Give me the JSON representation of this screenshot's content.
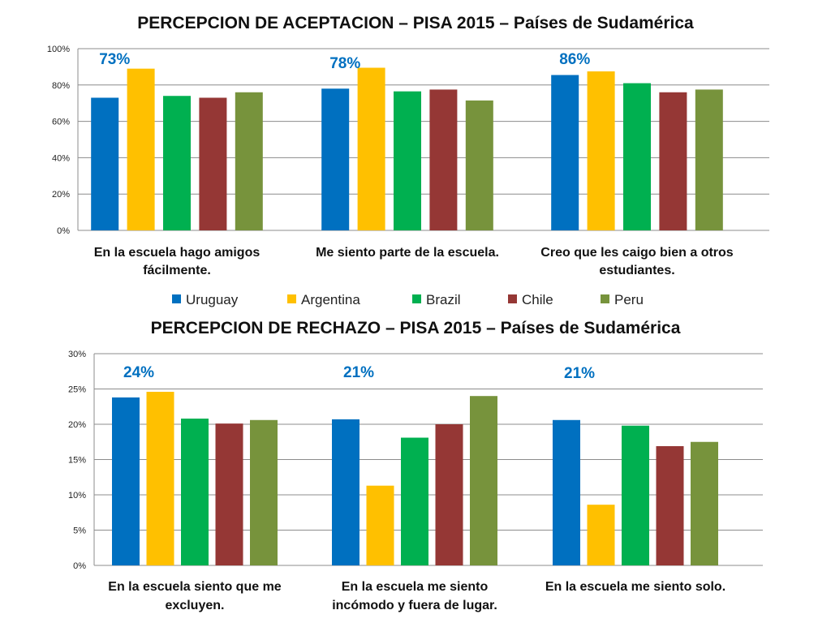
{
  "chart_data": [
    {
      "type": "bar",
      "title": "PERCEPCION DE ACEPTACION – PISA 2015 – Países de Sudamérica",
      "ylim": [
        0,
        100
      ],
      "yticks": [
        "0%",
        "20%",
        "40%",
        "60%",
        "80%",
        "100%"
      ],
      "ytick_values": [
        0,
        20,
        40,
        60,
        80,
        100
      ],
      "grid": true,
      "categories": [
        [
          "En la escuela hago amigos",
          "fácilmente."
        ],
        [
          "Me siento parte de la escuela."
        ],
        [
          "Creo que les caigo bien a otros",
          "estudiantes."
        ]
      ],
      "series": [
        {
          "name": "Uruguay",
          "values": [
            73,
            78,
            85.5
          ]
        },
        {
          "name": "Argentina",
          "values": [
            89,
            89.5,
            87.5
          ]
        },
        {
          "name": "Brazil",
          "values": [
            74,
            76.5,
            81
          ]
        },
        {
          "name": "Chile",
          "values": [
            73,
            77.5,
            76
          ]
        },
        {
          "name": "Peru",
          "values": [
            76,
            71.5,
            77.5
          ]
        }
      ],
      "annotations": [
        "73%",
        "78%",
        "86%"
      ],
      "legend": "bottom"
    },
    {
      "type": "bar",
      "title": "PERCEPCION DE RECHAZO – PISA 2015 – Países  de Sudamérica",
      "ylim": [
        0,
        30
      ],
      "yticks": [
        "0%",
        "5%",
        "10%",
        "15%",
        "20%",
        "25%",
        "30%"
      ],
      "ytick_values": [
        0,
        5,
        10,
        15,
        20,
        25,
        30
      ],
      "grid": true,
      "categories": [
        [
          "En la escuela siento que me",
          "excluyen."
        ],
        [
          "En la escuela me siento",
          "incómodo y fuera de lugar."
        ],
        [
          "En la escuela me siento solo."
        ]
      ],
      "series": [
        {
          "name": "Uruguay",
          "values": [
            23.8,
            20.7,
            20.6
          ]
        },
        {
          "name": "Argentina",
          "values": [
            24.6,
            11.3,
            8.6
          ]
        },
        {
          "name": "Brazil",
          "values": [
            20.8,
            18.1,
            19.8
          ]
        },
        {
          "name": "Chile",
          "values": [
            20.1,
            20.0,
            16.9
          ]
        },
        {
          "name": "Peru",
          "values": [
            20.6,
            24.0,
            17.5
          ]
        }
      ],
      "annotations": [
        "24%",
        "21%",
        "21%"
      ]
    }
  ],
  "legend": [
    "Uruguay",
    "Argentina",
    "Brazil",
    "Chile",
    "Peru"
  ],
  "colors": {
    "Uruguay": "#0070C0",
    "Argentina": "#FFC000",
    "Brazil": "#00B050",
    "Chile": "#953735",
    "Peru": "#77933C",
    "annotation": "#0070C0",
    "grid": "#8C8C8C",
    "text": "#1F1F1F"
  }
}
